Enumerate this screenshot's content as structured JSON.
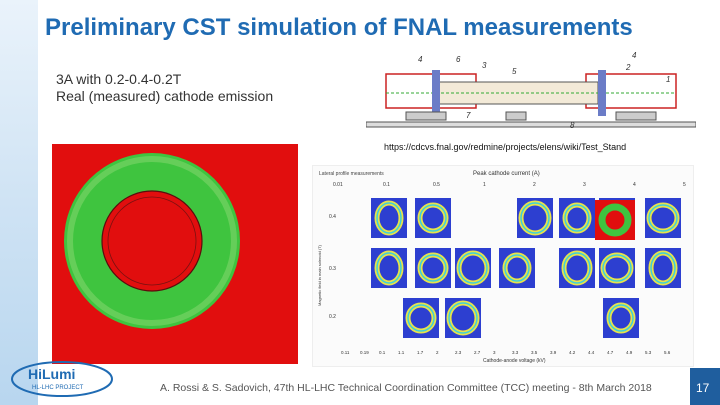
{
  "slide": {
    "title": "Preliminary CST simulation of FNAL measurements",
    "subtitle_lines": [
      "3A with 0.2-0.4-0.2T",
      "Real (measured) cathode emission"
    ],
    "url": "https://cdcvs.fnal.gov/redmine/projects/elens/wiki/Test_Stand",
    "footer": "A. Rossi & S. Sadovich, 47th HL-LHC Technical Coordination Committee (TCC) meeting - 8th March 2018",
    "slide_number": "17"
  },
  "logo": {
    "name": "HiLumi",
    "tagline": "HL-LHC PROJECT"
  },
  "stand_diagram": {
    "labels": [
      "4",
      "6",
      "3",
      "5",
      "4",
      "2",
      "1",
      "7",
      "8"
    ]
  },
  "measurement_grid": {
    "title": "Peak cathode current (A)",
    "top_ticks": [
      "0.01",
      "0.1",
      "0.5",
      "1",
      "2",
      "3",
      "4",
      "5"
    ],
    "y_ticks": [
      "0.4",
      "0.3",
      "0.2"
    ],
    "y_label": "Magnetic field in main solenoid (T)",
    "x_label": "Cathode-anode voltage (kV)",
    "bottom_ticks": [
      "0.11",
      "0.19",
      "0.1",
      "1.1",
      "1.7",
      "2",
      "2.3",
      "2.7",
      "3",
      "3.3",
      "3.5",
      "3.9",
      "4.2",
      "4.4",
      "4.7",
      "4.9",
      "5.3",
      "5.6"
    ]
  },
  "colors": {
    "title": "#1f6bb3",
    "sim_background": "#e10e0e",
    "sim_ring": "#3fc43f"
  }
}
